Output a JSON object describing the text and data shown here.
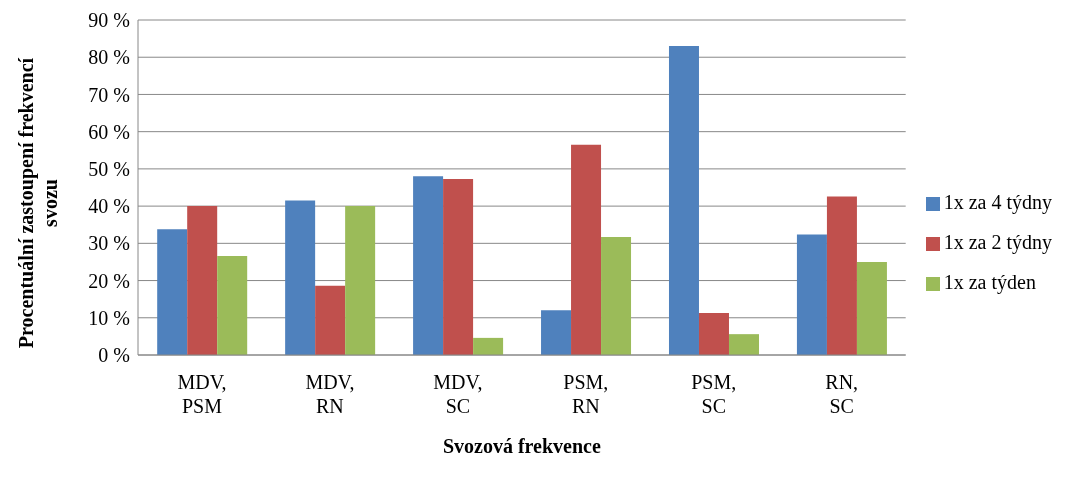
{
  "chart_data": {
    "type": "bar",
    "xlabel": "Svozová frekvence",
    "ylabel": "Procentuální zastoupení frekvencí svozu",
    "categories": [
      "MDV, PSM",
      "MDV, RN",
      "MDV, SC",
      "PSM, RN",
      "PSM, SC",
      "RN, SC"
    ],
    "series": [
      {
        "name": "1x za 4 týdny",
        "color": "#4f81bd",
        "values": [
          33.8,
          41.5,
          48,
          12,
          83,
          32.4
        ]
      },
      {
        "name": "1x za 2 týdny",
        "color": "#c0504d",
        "values": [
          40,
          18.6,
          47.3,
          56.5,
          11.3,
          42.6
        ]
      },
      {
        "name": "1x za týden",
        "color": "#9bbb59",
        "values": [
          26.6,
          40,
          4.6,
          31.7,
          5.6,
          25
        ]
      }
    ],
    "ylim": [
      0,
      90
    ],
    "yticks": [
      {
        "value": 0,
        "label": "0 %"
      },
      {
        "value": 10,
        "label": "10 %"
      },
      {
        "value": 20,
        "label": "20 %"
      },
      {
        "value": 30,
        "label": "30 %"
      },
      {
        "value": 40,
        "label": "40 %"
      },
      {
        "value": 50,
        "label": "50 %"
      },
      {
        "value": 60,
        "label": "60 %"
      },
      {
        "value": 70,
        "label": "70 %"
      },
      {
        "value": 80,
        "label": "80 %"
      },
      {
        "value": 90,
        "label": "90 %"
      }
    ],
    "grid": "y",
    "legend": "right"
  }
}
